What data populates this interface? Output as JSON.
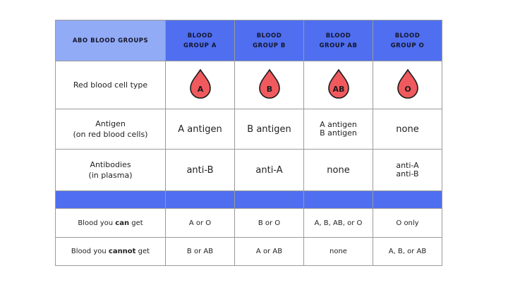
{
  "header": [
    "ABO BLOOD GROUPS",
    "BLOOD GROUP A",
    "BLOOD GROUP B",
    "BLOOD GROUP AB",
    "BLOOD GROUP O"
  ],
  "rows": {
    "rbc": {
      "label": "Red blood cell type",
      "drops": [
        "A",
        "B",
        "AB",
        "O"
      ]
    },
    "antigen": {
      "label_line1": "Antigen",
      "label_line2": "(on red blood cells)",
      "values": [
        "A antigen",
        "B antigen",
        [
          "A antigen",
          "B antigen"
        ],
        "none"
      ]
    },
    "antibodies": {
      "label_line1": "Antibodies",
      "label_line2": "(in plasma)",
      "values": [
        "anti-B",
        "anti-A",
        "none",
        [
          "anti-A",
          "anti-B"
        ]
      ]
    },
    "can_get": {
      "label_pre": "Blood you ",
      "label_bold": "can",
      "label_post": " get",
      "values": [
        "A or O",
        "B or O",
        "A, B, AB, or O",
        "O only"
      ]
    },
    "cannot_get": {
      "label_pre": "Blood you ",
      "label_bold": "cannot",
      "label_post": " get",
      "values": [
        "B or AB",
        "A or AB",
        "none",
        "A, B, or AB"
      ]
    }
  },
  "colors": {
    "header_blue": "#4f6ff0",
    "header_light": "#92abf6",
    "drop_red": "#f05a5e"
  }
}
